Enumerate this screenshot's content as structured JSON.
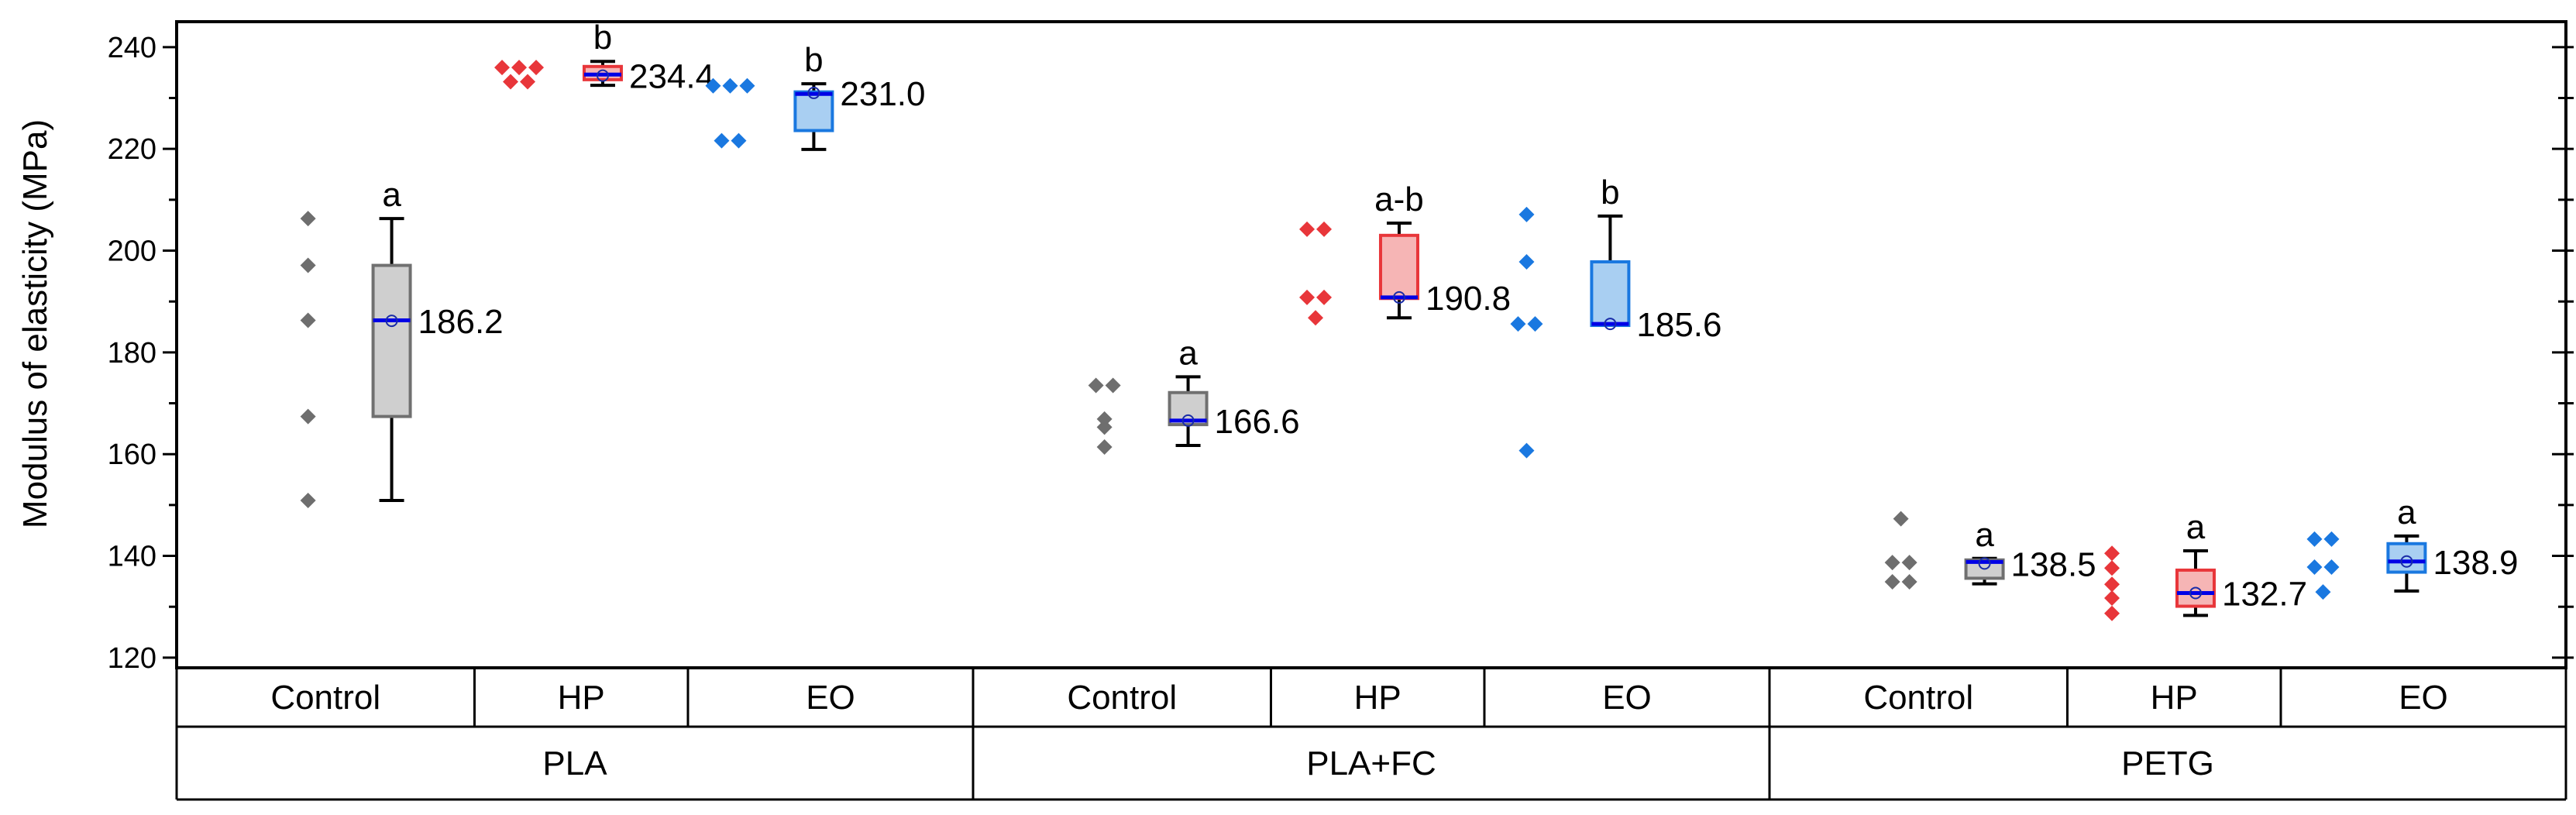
{
  "chart_data": {
    "type": "box",
    "ylabel": "Modulus of elasticity (MPa)",
    "ylim": [
      118,
      245
    ],
    "yticks": [
      120,
      140,
      160,
      180,
      200,
      220,
      240
    ],
    "groups": [
      "PLA",
      "PLA+FC",
      "PETG"
    ],
    "treatments": [
      "Control",
      "HP",
      "EO"
    ],
    "colors": {
      "Control": {
        "fill": "#cfcfcf",
        "edge": "#707070",
        "point": "#6e6e6e"
      },
      "HP": {
        "fill": "#f6b5b5",
        "edge": "#e8363a",
        "point": "#e8363a"
      },
      "EO": {
        "fill": "#a9cff2",
        "edge": "#1a78e0",
        "point": "#1a78e0"
      },
      "median": "#0000e6",
      "mean": "#1a2ca8"
    },
    "boxes": [
      {
        "group": "PLA",
        "treatment": "Control",
        "points": [
          150.9,
          167.4,
          186.3,
          197.1,
          206.3
        ],
        "q1": 167.4,
        "median": 186.3,
        "q3": 197.1,
        "whisker_low": 150.9,
        "whisker_high": 206.3,
        "mean": 186.2,
        "mean_label": "186.2",
        "letter": "a"
      },
      {
        "group": "PLA",
        "treatment": "HP",
        "points": [
          233.2,
          233.2,
          236.0,
          236.0,
          236.0
        ],
        "q1": 233.6,
        "median": 234.6,
        "q3": 236.2,
        "whisker_low": 232.5,
        "whisker_high": 237.2,
        "mean": 234.4,
        "mean_label": "234.4",
        "letter": "b"
      },
      {
        "group": "PLA",
        "treatment": "EO",
        "points": [
          221.6,
          221.6,
          232.4,
          232.4,
          232.4
        ],
        "q1": 223.6,
        "median": 230.8,
        "q3": 231.2,
        "whisker_low": 219.9,
        "whisker_high": 232.8,
        "mean": 231.0,
        "mean_label": "231.0",
        "letter": "b"
      },
      {
        "group": "PLA+FC",
        "treatment": "Control",
        "points": [
          161.4,
          165.3,
          166.9,
          173.5,
          173.5
        ],
        "q1": 165.8,
        "median": 166.6,
        "q3": 172.1,
        "whisker_low": 161.7,
        "whisker_high": 175.2,
        "mean": 166.6,
        "mean_label": "166.6",
        "letter": "a"
      },
      {
        "group": "PLA+FC",
        "treatment": "HP",
        "points": [
          186.8,
          190.8,
          190.8,
          204.2,
          204.2
        ],
        "q1": 190.6,
        "median": 190.8,
        "q3": 203.0,
        "whisker_low": 186.8,
        "whisker_high": 205.4,
        "mean": 190.8,
        "mean_label": "190.8",
        "letter": "a-b"
      },
      {
        "group": "PLA+FC",
        "treatment": "EO",
        "points": [
          160.7,
          185.6,
          185.6,
          197.8,
          207.1
        ],
        "q1": 185.3,
        "median": 185.6,
        "q3": 197.8,
        "whisker_low": 185.3,
        "whisker_high": 206.8,
        "mean": 185.6,
        "mean_label": "185.6",
        "letter": "b"
      },
      {
        "group": "PETG",
        "treatment": "Control",
        "points": [
          134.9,
          134.9,
          138.7,
          138.7,
          147.3
        ],
        "q1": 135.6,
        "median": 138.8,
        "q3": 139.2,
        "whisker_low": 134.5,
        "whisker_high": 139.5,
        "mean": 138.5,
        "mean_label": "138.5",
        "letter": "a"
      },
      {
        "group": "PETG",
        "treatment": "HP",
        "points": [
          128.7,
          131.7,
          134.4,
          137.6,
          140.5
        ],
        "q1": 130.1,
        "median": 132.7,
        "q3": 137.2,
        "whisker_low": 128.3,
        "whisker_high": 141.0,
        "mean": 132.7,
        "mean_label": "132.7",
        "letter": "a"
      },
      {
        "group": "PETG",
        "treatment": "EO",
        "points": [
          132.9,
          137.8,
          137.8,
          143.3,
          143.3
        ],
        "q1": 136.8,
        "median": 138.9,
        "q3": 142.4,
        "whisker_low": 133.1,
        "whisker_high": 143.9,
        "mean": 138.9,
        "mean_label": "138.9",
        "letter": "a"
      }
    ]
  }
}
